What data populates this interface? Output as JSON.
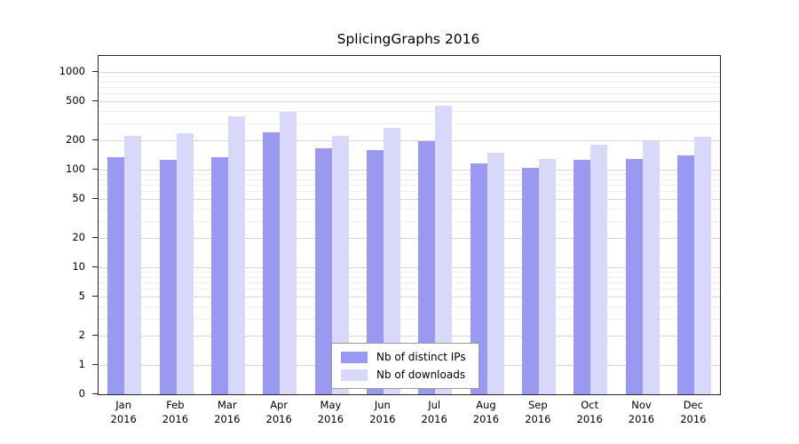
{
  "chart_data": {
    "type": "bar",
    "title": "SplicingGraphs 2016",
    "categories": [
      "Jan",
      "Feb",
      "Mar",
      "Apr",
      "May",
      "Jun",
      "Jul",
      "Aug",
      "Sep",
      "Oct",
      "Nov",
      "Dec"
    ],
    "year_label": "2016",
    "yscale": "log",
    "yticks": [
      0,
      1,
      2,
      5,
      10,
      20,
      50,
      100,
      200,
      500,
      1000
    ],
    "ylim": [
      0,
      1000
    ],
    "grid": "horizontal",
    "legend_position": "bottom-center-inside",
    "series": [
      {
        "name": "Nb of distinct IPs",
        "color": "#9999f2",
        "values": [
          135,
          125,
          135,
          240,
          165,
          160,
          195,
          115,
          105,
          125,
          130,
          140
        ]
      },
      {
        "name": "Nb of downloads",
        "color": "#d8d8fb",
        "values": [
          220,
          235,
          350,
          390,
          220,
          265,
          450,
          150,
          130,
          180,
          195,
          215
        ]
      }
    ]
  }
}
